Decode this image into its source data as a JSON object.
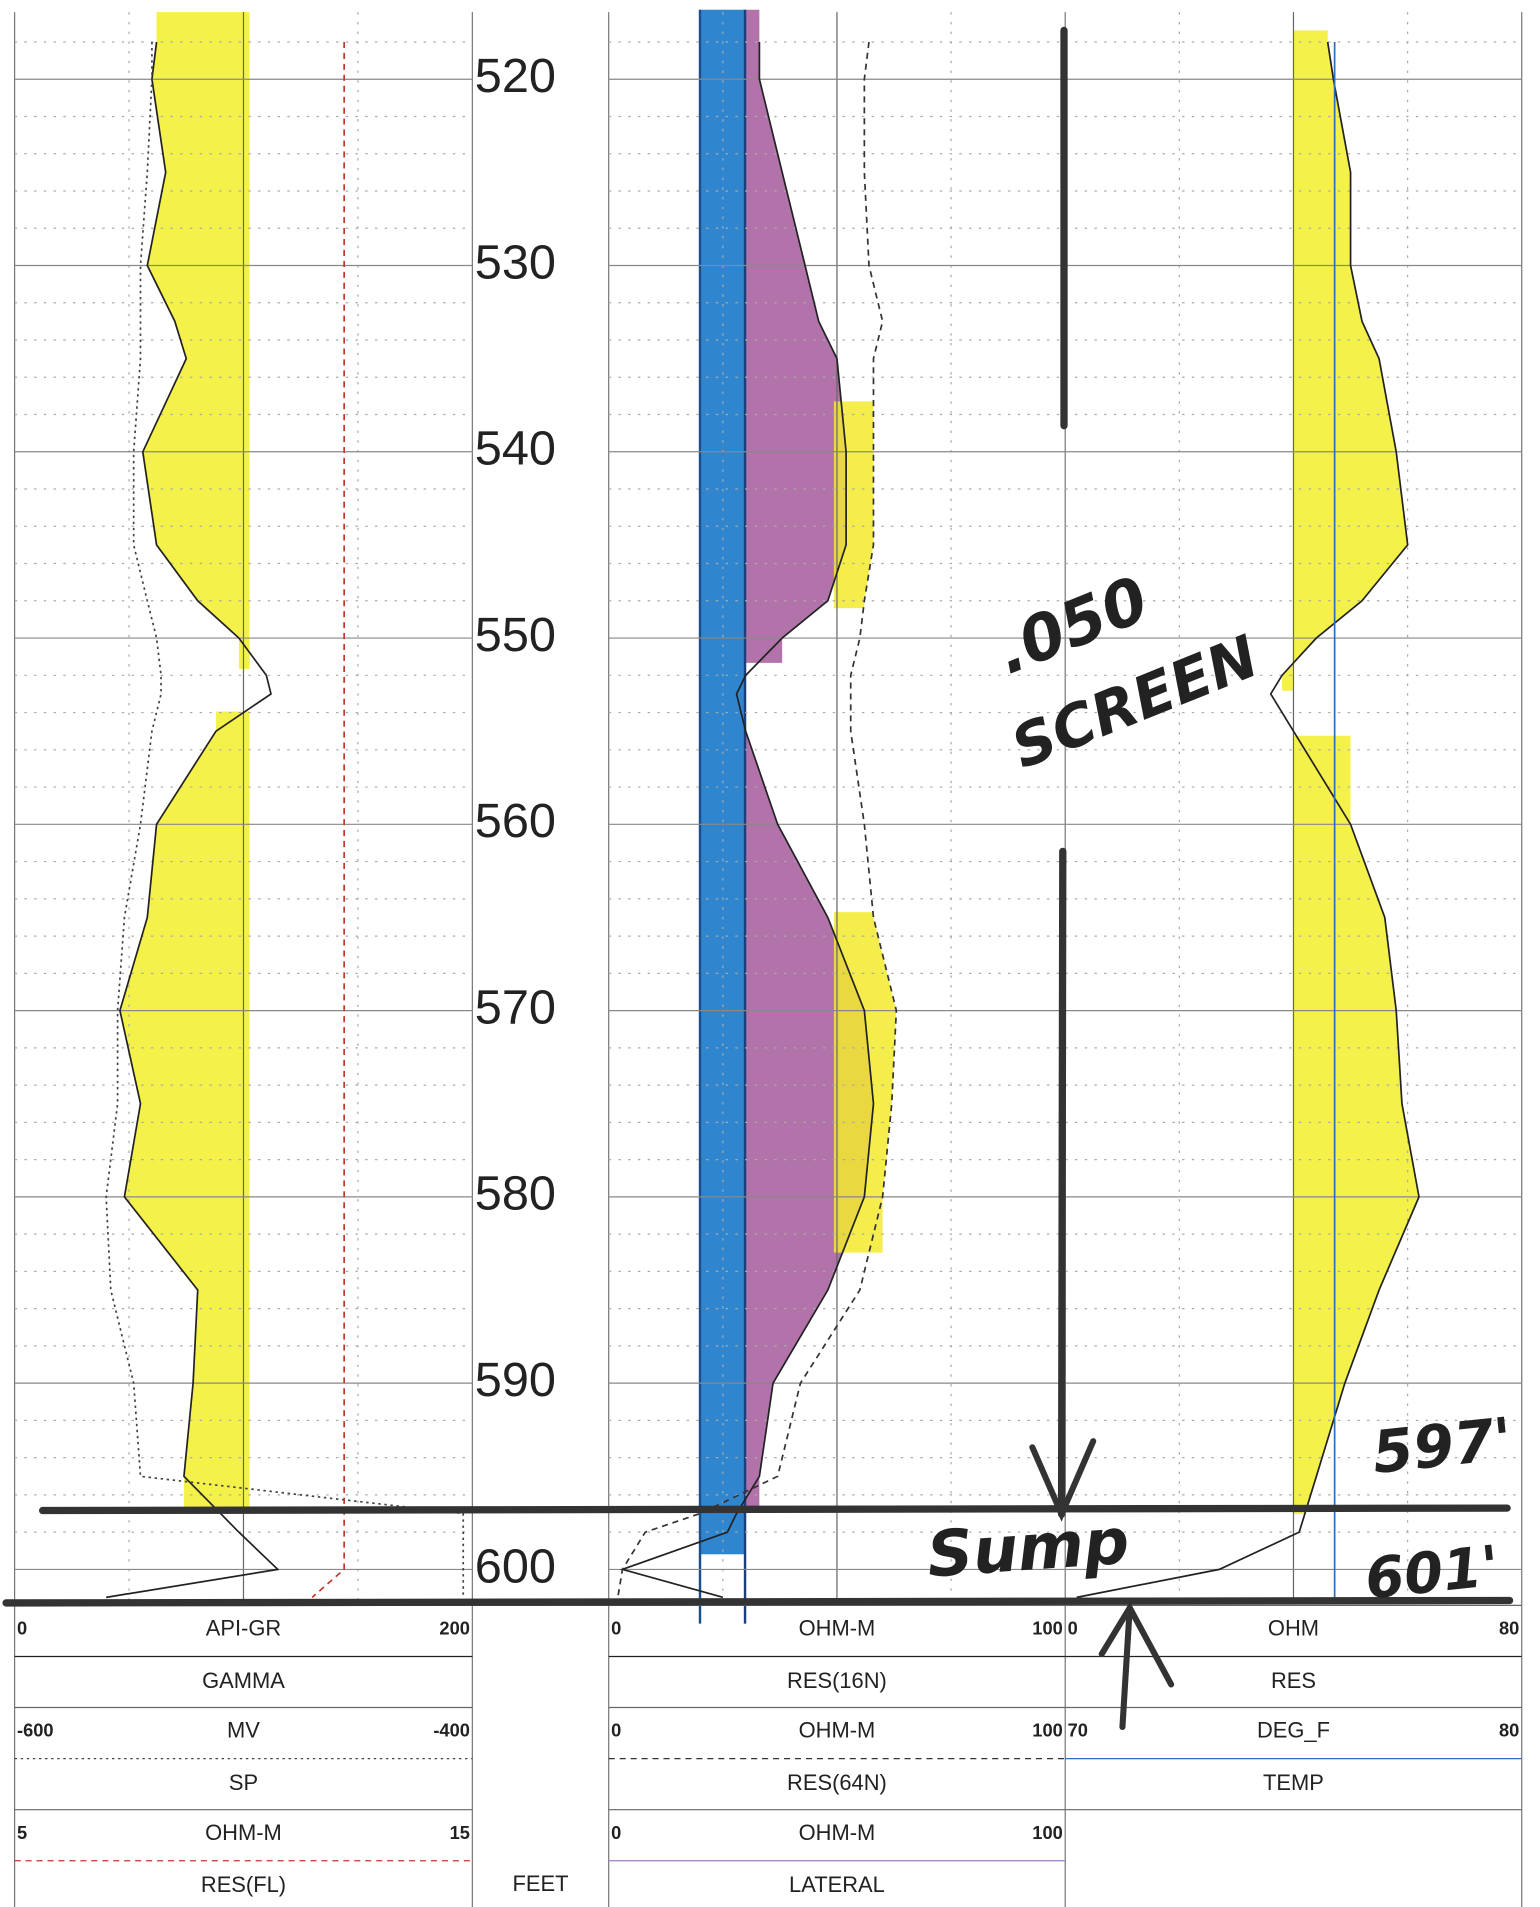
{
  "chart_data": {
    "type": "well_log",
    "depth_label": "FEET",
    "ylim": [
      516.4,
      601.8
    ],
    "yticks": [
      520,
      530,
      540,
      550,
      560,
      570,
      580,
      590,
      600
    ],
    "minor_yticks": [
      518,
      522,
      524,
      526,
      528,
      532,
      534,
      536,
      538,
      542,
      544,
      546,
      548,
      552,
      554,
      556,
      558,
      562,
      564,
      566,
      568,
      572,
      574,
      576,
      578,
      582,
      584,
      586,
      588,
      592,
      594,
      596,
      598
    ],
    "depths": [
      518,
      520,
      525,
      530,
      533,
      535,
      540,
      545,
      548,
      550,
      552,
      553,
      555,
      560,
      565,
      570,
      575,
      580,
      585,
      590,
      595,
      597,
      598,
      600,
      601.5
    ],
    "tracks": [
      {
        "curves": [
          {
            "name": "GAMMA",
            "unit": "API-GR",
            "xlim": [
              0,
              200
            ],
            "color": "#222222",
            "dash": "none",
            "values": [
              62,
              60,
              66,
              58,
              70,
              75,
              56,
              62,
              80,
              98,
              110,
              112,
              88,
              62,
              58,
              46,
              55,
              48,
              80,
              78,
              74,
              90,
              98,
              115,
              40
            ]
          },
          {
            "name": "SP",
            "unit": "MV",
            "xlim": [
              -600,
              -400
            ],
            "color": "#444444",
            "dash": "2,3",
            "values": [
              -540,
              -540,
              -542,
              -545,
              -545,
              -545,
              -548,
              -548,
              -542,
              -538,
              -536,
              -536,
              -540,
              -545,
              -552,
              -555,
              -555,
              -560,
              -558,
              -548,
              -545,
              -404,
              -404,
              -404,
              -404
            ]
          },
          {
            "name": "RES(FL)",
            "unit": "OHM-M",
            "xlim": [
              5,
              15
            ],
            "color": "#c0392b",
            "dash": "5,4",
            "values": [
              12.2,
              12.2,
              12.2,
              12.2,
              12.2,
              12.2,
              12.2,
              12.2,
              12.2,
              12.2,
              12.2,
              12.2,
              12.2,
              12.2,
              12.2,
              12.2,
              12.2,
              12.2,
              12.2,
              12.2,
              12.2,
              12.2,
              12.2,
              12.2,
              11.5
            ]
          }
        ]
      },
      {
        "curves": [
          {
            "name": "RES(16N)",
            "unit": "OHM-M",
            "xlim": [
              0,
              100
            ],
            "color": "#222222",
            "dash": "none",
            "values": [
              33,
              33,
              38,
              43,
              46,
              50,
              52,
              52,
              48,
              38,
              30,
              28,
              30,
              37,
              48,
              56,
              58,
              56,
              48,
              36,
              33,
              28,
              26,
              3,
              25
            ]
          },
          {
            "name": "RES(64N)",
            "unit": "OHM-M",
            "xlim": [
              0,
              100
            ],
            "color": "#333333",
            "dash": "5,4",
            "values": [
              57,
              56,
              56,
              57,
              60,
              58,
              58,
              58,
              56,
              55,
              53,
              53,
              53,
              56,
              58,
              63,
              62,
              60,
              55,
              42,
              37,
              20,
              8,
              3,
              2
            ]
          },
          {
            "name": "LATERAL",
            "unit": "OHM-M",
            "xlim": [
              0,
              100
            ],
            "color": "#9b7fc4",
            "dash": "none"
          }
        ]
      },
      {
        "curves": [
          {
            "name": "RES",
            "unit": "OHM",
            "xlim": [
              0,
              80
            ],
            "color": "#222222",
            "dash": "none",
            "values": [
              46,
              47,
              50,
              50,
              52,
              55,
              58,
              60,
              52,
              44,
              38,
              36,
              40,
              50,
              56,
              58,
              59,
              62,
              55,
              49,
              44,
              42,
              41,
              27,
              2
            ]
          },
          {
            "name": "TEMP",
            "unit": "DEG_F",
            "xlim": [
              70,
              80
            ],
            "color": "#2f6db5",
            "dash": "none",
            "values": [
              75.9,
              75.9,
              75.9,
              75.9,
              75.9,
              75.9,
              75.9,
              75.9,
              75.9,
              75.9,
              75.9,
              75.9,
              75.9,
              75.9,
              75.9,
              75.9,
              75.9,
              75.9,
              75.9,
              75.9,
              75.9,
              75.9,
              75.9,
              75.9,
              75.9
            ]
          }
        ]
      }
    ],
    "annotations": [
      ".050",
      "SCREEN",
      "597'",
      "Sump",
      "601'"
    ]
  }
}
